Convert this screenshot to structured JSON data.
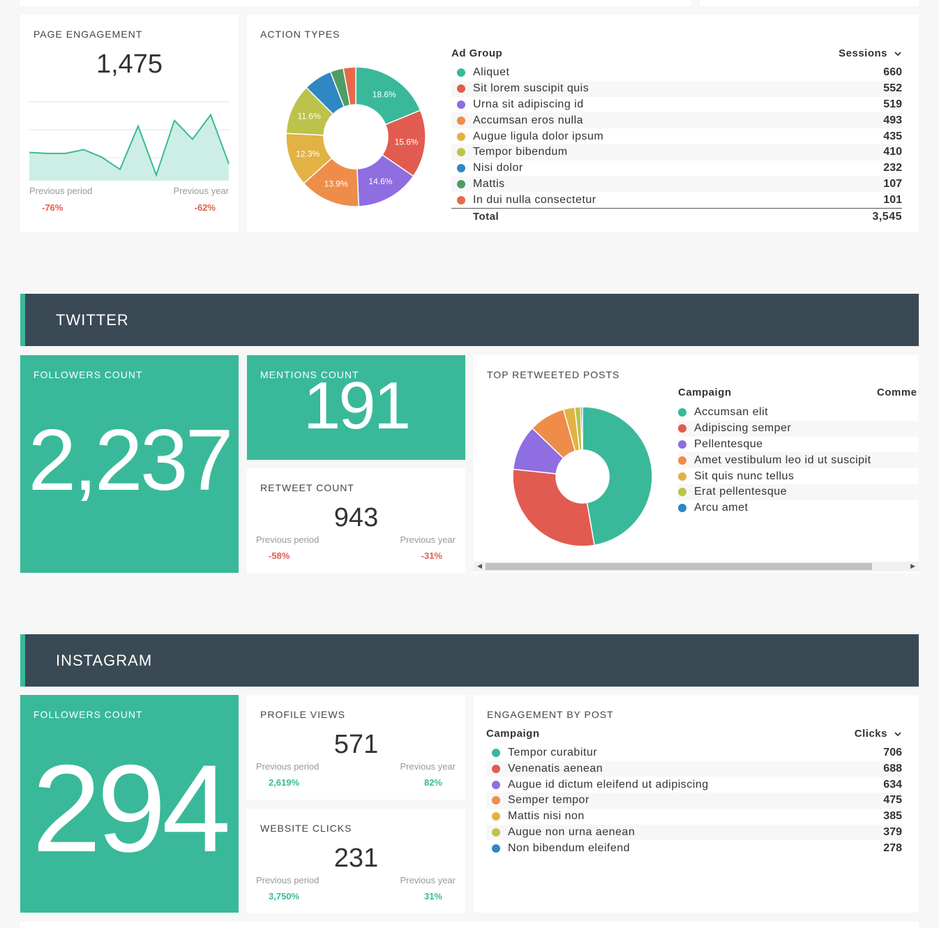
{
  "page_engagement": {
    "title": "PAGE ENGAGEMENT",
    "value": "1,475",
    "prev_period_label": "Previous period",
    "prev_period_value": "-76%",
    "prev_year_label": "Previous year",
    "prev_year_value": "-62%",
    "sparkline": [
      30,
      29,
      29,
      33,
      25,
      12,
      58,
      6,
      64,
      44,
      70,
      18
    ]
  },
  "action_types": {
    "title": "ACTION TYPES",
    "col_group": "Ad Group",
    "col_metric": "Sessions",
    "rows": [
      {
        "label": "Aliquet",
        "value": "660",
        "color": "#39b99a"
      },
      {
        "label": "Sit lorem suscipit quis",
        "value": "552",
        "color": "#e25b50"
      },
      {
        "label": "Urna sit adipiscing id",
        "value": "519",
        "color": "#8e6ee0"
      },
      {
        "label": "Accumsan eros nulla",
        "value": "493",
        "color": "#ee8d4a"
      },
      {
        "label": "Augue ligula dolor ipsum",
        "value": "435",
        "color": "#e2b244"
      },
      {
        "label": "Tempor bibendum",
        "value": "410",
        "color": "#bcc24a"
      },
      {
        "label": "Nisi dolor",
        "value": "232",
        "color": "#2f87c4"
      },
      {
        "label": "Mattis",
        "value": "107",
        "color": "#4e9e64"
      },
      {
        "label": "In dui nulla consectetur",
        "value": "101",
        "color": "#e9684a"
      }
    ],
    "total_label": "Total",
    "total_value": "3,545",
    "pie_labels": [
      "18.6%",
      "15.6%",
      "14.6%",
      "13.9%",
      "12.3%",
      "11.6%"
    ]
  },
  "twitter": {
    "header": "TWITTER",
    "followers_title": "FOLLOWERS COUNT",
    "followers_value": "2,237",
    "mentions_title": "MENTIONS COUNT",
    "mentions_value": "191",
    "retweet_title": "RETWEET COUNT",
    "retweet_value": "943",
    "prev_period_label": "Previous period",
    "prev_period_value": "-58%",
    "prev_year_label": "Previous year",
    "prev_year_value": "-31%",
    "top_posts_title": "TOP RETWEETED POSTS",
    "col_campaign": "Campaign",
    "col_comments": "Comme",
    "legend": [
      {
        "label": "Accumsan elit",
        "color": "#39b99a",
        "share": 45
      },
      {
        "label": "Adipiscing semper",
        "color": "#e25b50",
        "share": 28
      },
      {
        "label": "Pellentesque",
        "color": "#8e6ee0",
        "share": 10
      },
      {
        "label": "Amet vestibulum leo id ut suscipit",
        "color": "#ee8d4a",
        "share": 8
      },
      {
        "label": "Sit quis nunc tellus",
        "color": "#e2b244",
        "share": 2.5
      },
      {
        "label": "Erat pellentesque",
        "color": "#bcc24a",
        "share": 1.3
      },
      {
        "label": "Arcu amet",
        "color": "#2f87c4",
        "share": 0.4
      }
    ]
  },
  "instagram": {
    "header": "INSTAGRAM",
    "followers_title": "FOLLOWERS COUNT",
    "followers_value": "294",
    "profile_title": "PROFILE VIEWS",
    "profile_value": "571",
    "profile_prev_period_label": "Previous period",
    "profile_prev_period_value": "2,619%",
    "profile_prev_year_label": "Previous year",
    "profile_prev_year_value": "82%",
    "clicks_title": "WEBSITE CLICKS",
    "clicks_value": "231",
    "clicks_prev_period_label": "Previous period",
    "clicks_prev_period_value": "3,750%",
    "clicks_prev_year_label": "Previous year",
    "clicks_prev_year_value": "31%",
    "engagement_title": "ENGAGEMENT BY POST",
    "col_campaign": "Campaign",
    "col_metric": "Clicks",
    "rows": [
      {
        "label": "Tempor curabitur",
        "value": "706",
        "color": "#39b99a"
      },
      {
        "label": "Venenatis aenean",
        "value": "688",
        "color": "#e25b50"
      },
      {
        "label": "Augue id dictum eleifend ut adipiscing",
        "value": "634",
        "color": "#8e6ee0"
      },
      {
        "label": "Semper tempor",
        "value": "475",
        "color": "#ee8d4a"
      },
      {
        "label": "Mattis nisi non",
        "value": "385",
        "color": "#e2b244"
      },
      {
        "label": "Augue non urna aenean",
        "value": "379",
        "color": "#bcc24a"
      },
      {
        "label": "Non bibendum eleifend",
        "value": "278",
        "color": "#2f87c4"
      }
    ]
  }
}
